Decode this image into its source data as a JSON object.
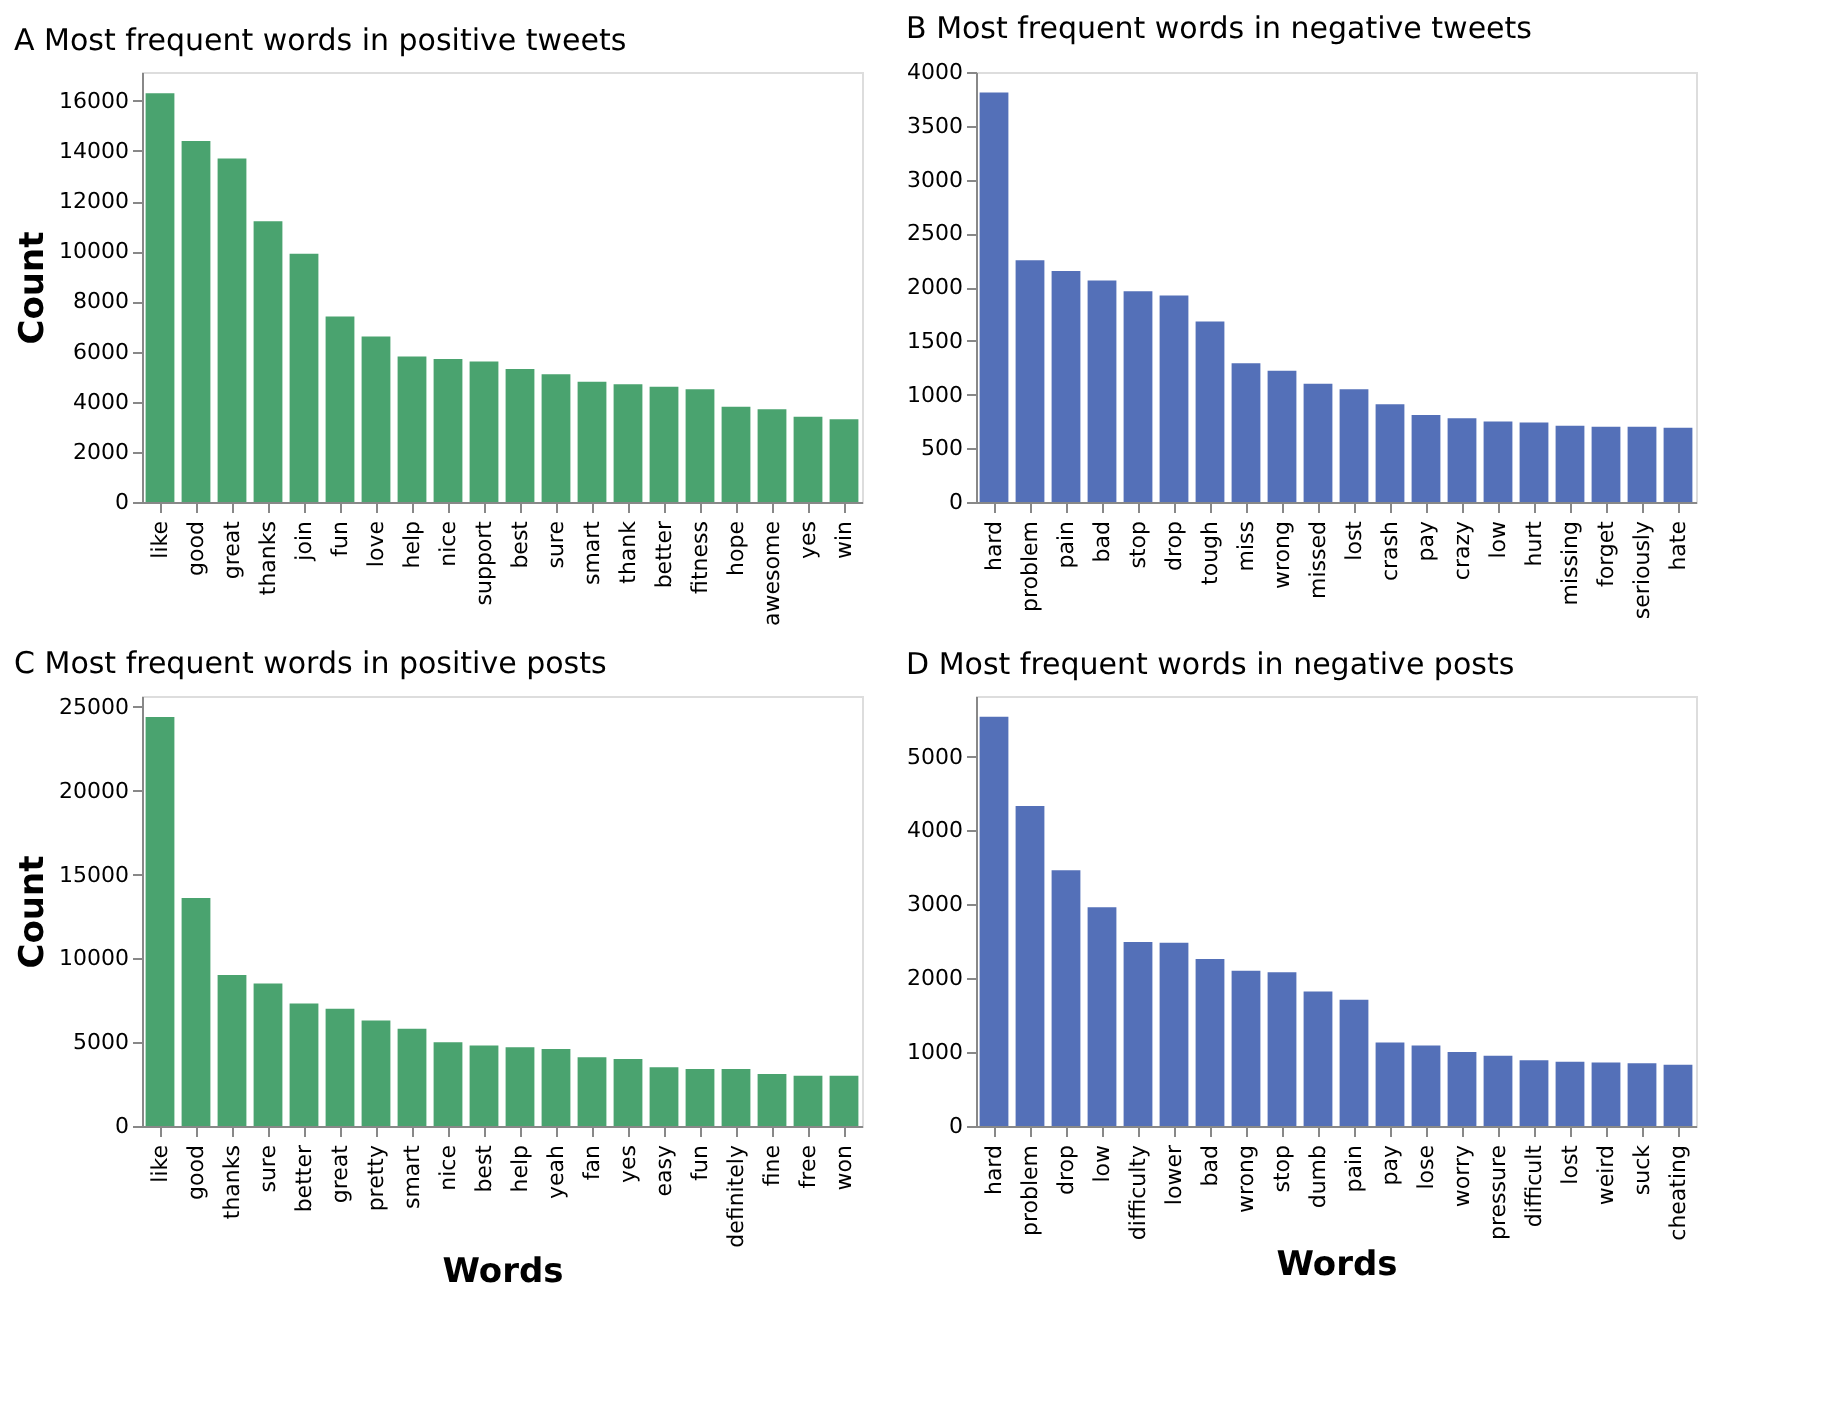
{
  "chart_data": [
    {
      "type": "bar",
      "title": "A   Most frequent words in positive tweets",
      "ylabel": "Count",
      "categories": [
        "like",
        "good",
        "great",
        "thanks",
        "join",
        "fun",
        "love",
        "help",
        "nice",
        "support",
        "best",
        "sure",
        "smart",
        "thank",
        "better",
        "fitness",
        "hope",
        "awesome",
        "yes",
        "win"
      ],
      "values": [
        16300,
        14400,
        13700,
        11200,
        9900,
        7400,
        6600,
        5800,
        5700,
        5600,
        5300,
        5100,
        4800,
        4700,
        4600,
        4500,
        3800,
        3700,
        3400,
        3300
      ],
      "color": "#4aa36f",
      "ylim": [
        0,
        17150
      ],
      "yticks": [
        0,
        2000,
        4000,
        6000,
        8000,
        10000,
        12000,
        14000,
        16000
      ],
      "grid": false
    },
    {
      "type": "bar",
      "title": "B   Most frequent words in negative tweets",
      "categories": [
        "hard",
        "problem",
        "pain",
        "bad",
        "stop",
        "drop",
        "tough",
        "miss",
        "wrong",
        "missed",
        "lost",
        "crash",
        "pay",
        "crazy",
        "low",
        "hurt",
        "missing",
        "forget",
        "seriously",
        "hate"
      ],
      "values": [
        3810,
        2250,
        2150,
        2060,
        1960,
        1920,
        1680,
        1290,
        1220,
        1100,
        1050,
        910,
        810,
        780,
        750,
        740,
        710,
        700,
        700,
        690
      ],
      "color": "#5470b8",
      "ylim": [
        0,
        4000
      ],
      "yticks": [
        0,
        500,
        1000,
        1500,
        2000,
        2500,
        3000,
        3500,
        4000
      ],
      "grid": false
    },
    {
      "type": "bar",
      "title": "C   Most frequent words in positive posts",
      "xlabel": "Words",
      "ylabel": "Count",
      "categories": [
        "like",
        "good",
        "thanks",
        "sure",
        "better",
        "great",
        "pretty",
        "smart",
        "nice",
        "best",
        "help",
        "yeah",
        "fan",
        "yes",
        "easy",
        "fun",
        "definitely",
        "fine",
        "free",
        "won"
      ],
      "values": [
        24400,
        13600,
        9000,
        8500,
        7300,
        7000,
        6300,
        5800,
        5000,
        4800,
        4700,
        4600,
        4100,
        4000,
        3500,
        3400,
        3400,
        3100,
        3000,
        3000
      ],
      "color": "#4aa36f",
      "ylim": [
        0,
        25650
      ],
      "yticks": [
        0,
        5000,
        10000,
        15000,
        20000,
        25000
      ],
      "grid": false
    },
    {
      "type": "bar",
      "title": "D   Most frequent words in negative posts",
      "xlabel": "Words",
      "categories": [
        "hard",
        "problem",
        "drop",
        "low",
        "difficulty",
        "lower",
        "bad",
        "wrong",
        "stop",
        "dumb",
        "pain",
        "pay",
        "lose",
        "worry",
        "pressure",
        "difficult",
        "lost",
        "weird",
        "suck",
        "cheating"
      ],
      "values": [
        5540,
        4330,
        3460,
        2960,
        2490,
        2480,
        2260,
        2100,
        2080,
        1820,
        1710,
        1130,
        1090,
        1000,
        950,
        890,
        870,
        860,
        850,
        830
      ],
      "color": "#5470b8",
      "ylim": [
        0,
        5820
      ],
      "yticks": [
        0,
        1000,
        2000,
        3000,
        4000,
        5000
      ],
      "grid": false
    }
  ]
}
